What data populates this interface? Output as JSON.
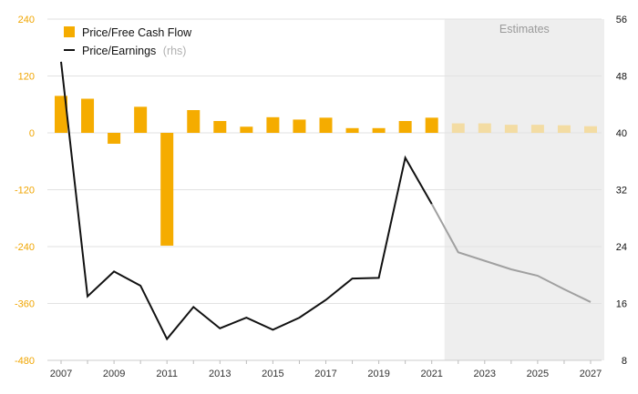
{
  "chart_data": {
    "type": "bar+line",
    "x": [
      2007,
      2008,
      2009,
      2010,
      2011,
      2012,
      2013,
      2014,
      2015,
      2016,
      2017,
      2018,
      2019,
      2020,
      2021,
      2022,
      2023,
      2024,
      2025,
      2026,
      2027
    ],
    "xtick_labels": [
      "2007",
      "2009",
      "2011",
      "2013",
      "2015",
      "2017",
      "2019",
      "2021",
      "2023",
      "2025",
      "2027"
    ],
    "left_axis": {
      "ylim": [
        -480,
        240
      ],
      "ticks": [
        "240",
        "120",
        "0",
        "-120",
        "-240",
        "-360",
        "-480"
      ]
    },
    "right_axis": {
      "ylim": [
        8,
        56
      ],
      "ticks": [
        "56",
        "48",
        "40",
        "32",
        "24",
        "16",
        "8"
      ]
    },
    "series": [
      {
        "name": "Price/Free Cash Flow",
        "type": "bar",
        "axis": "left",
        "color": "#f5ac00",
        "estimate_color": "#f3dca3",
        "values": [
          78,
          72,
          -23,
          55,
          -238,
          48,
          25,
          13,
          33,
          28,
          32,
          10,
          10,
          25,
          32,
          20,
          20,
          17,
          17,
          16,
          14
        ]
      },
      {
        "name": "Price/Earnings",
        "name_suffix": "(rhs)",
        "type": "line",
        "axis": "right",
        "color": "#111111",
        "estimate_color": "#a0a0a0",
        "values": [
          50,
          17,
          20.5,
          18.5,
          11,
          15.5,
          12.5,
          14,
          12.3,
          14,
          16.5,
          19.5,
          19.6,
          36.5,
          30,
          23.2,
          22,
          20.8,
          19.9,
          18,
          16.2
        ]
      }
    ],
    "estimates": {
      "label": "Estimates",
      "from": 2021.5,
      "to": 2027.5,
      "shade_color": "#eeeeee"
    },
    "grid": "horizontal",
    "legend": "top-left"
  }
}
